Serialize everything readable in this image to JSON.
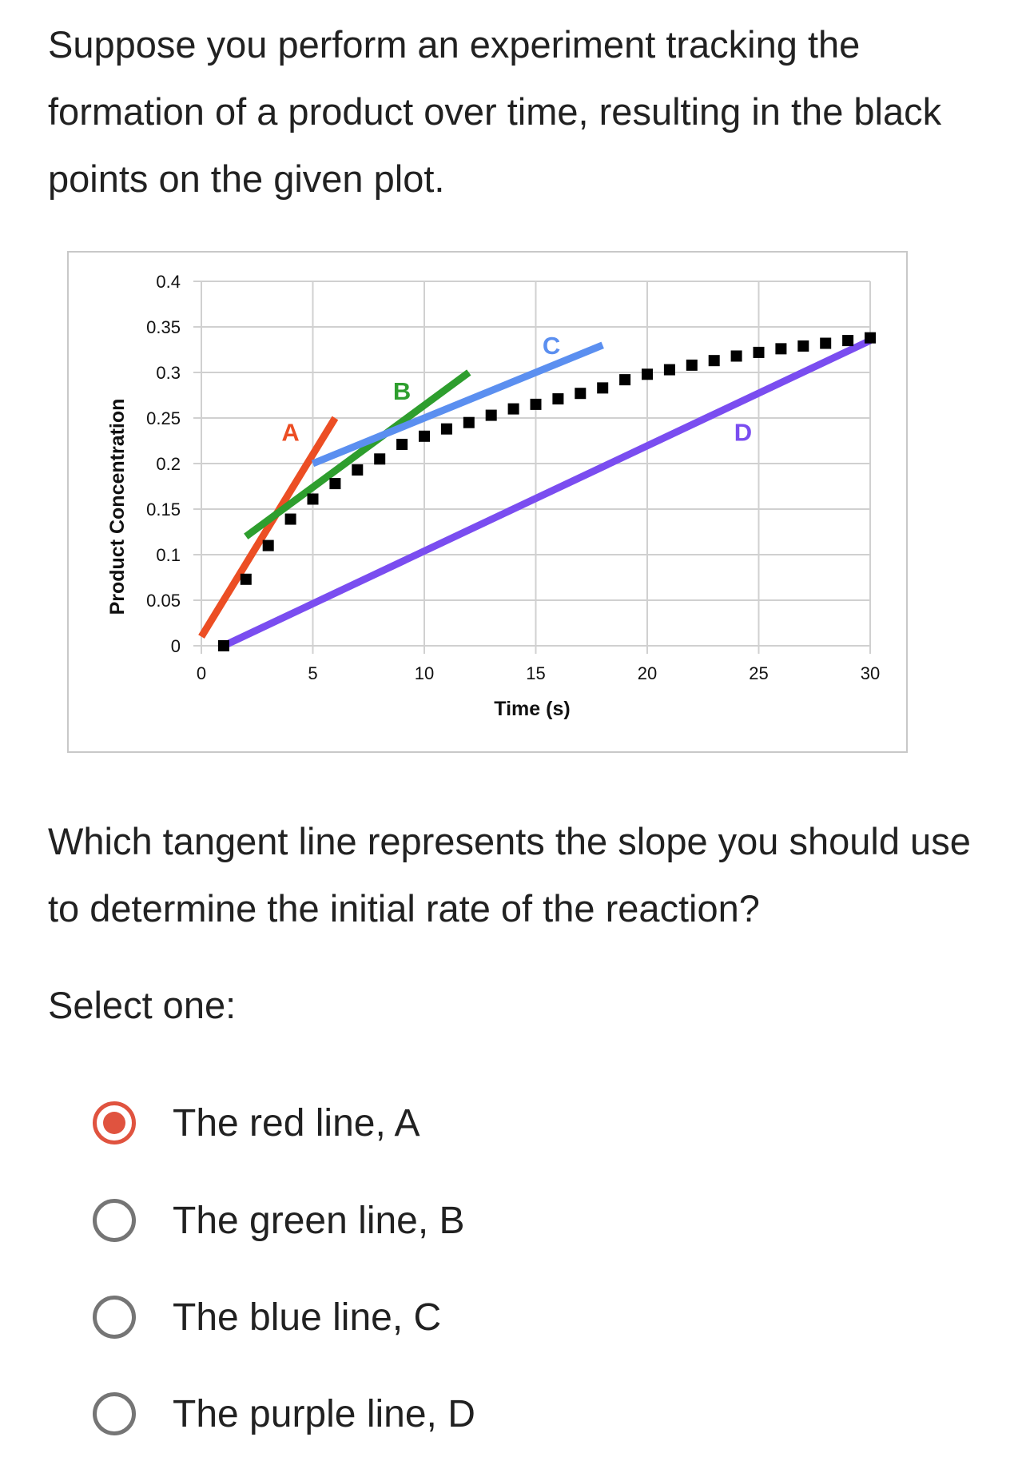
{
  "question_intro": "Suppose you perform an experiment tracking the formation of a product over time, resulting in the black points on the given plot.",
  "question": "Which tangent line represents the slope you should use to determine the initial rate of the reaction?",
  "select_label": "Select one:",
  "options": [
    {
      "label": "The red line, A",
      "selected": true
    },
    {
      "label": "The green line, B",
      "selected": false
    },
    {
      "label": "The blue line, C",
      "selected": false
    },
    {
      "label": "The purple line, D",
      "selected": false
    }
  ],
  "colors": {
    "accent": "#e0533f",
    "radio_border": "#757575",
    "red_line": "#ec4e24",
    "green_line": "#2e9e2e",
    "blue_line": "#5b8ff0",
    "purple_line": "#7a4df0",
    "points": "#000000",
    "grid": "#d0d0d0"
  },
  "chart_data": {
    "type": "scatter",
    "xlabel": "Time (s)",
    "ylabel": "Product Concentration",
    "xlim": [
      0,
      30
    ],
    "ylim": [
      0,
      0.4
    ],
    "xticks": [
      0,
      5,
      10,
      15,
      20,
      25,
      30
    ],
    "yticks": [
      0,
      0.05,
      0.1,
      0.15,
      0.2,
      0.25,
      0.3,
      0.35,
      0.4
    ],
    "ytick_labels": [
      "0",
      "0.05",
      "0.1",
      "0.15",
      "0.2",
      "0.25",
      "0.3",
      "0.35",
      "0.4"
    ],
    "grid": true,
    "points": {
      "x": [
        1,
        2,
        3,
        4,
        5,
        6,
        7,
        8,
        9,
        10,
        11,
        12,
        13,
        14,
        15,
        16,
        17,
        18,
        19,
        20,
        21,
        22,
        23,
        24,
        25,
        26,
        27,
        28,
        29,
        30
      ],
      "y": [
        0.0,
        0.073,
        0.11,
        0.139,
        0.161,
        0.178,
        0.193,
        0.205,
        0.221,
        0.23,
        0.238,
        0.245,
        0.253,
        0.26,
        0.265,
        0.271,
        0.277,
        0.283,
        0.292,
        0.298,
        0.303,
        0.308,
        0.313,
        0.318,
        0.322,
        0.326,
        0.329,
        0.332,
        0.335,
        0.338
      ]
    },
    "lines": [
      {
        "label": "A",
        "x": [
          0,
          6
        ],
        "y": [
          0.01,
          0.25
        ],
        "label_at": [
          4,
          0.225
        ]
      },
      {
        "label": "B",
        "x": [
          2,
          12
        ],
        "y": [
          0.12,
          0.3
        ],
        "label_at": [
          9,
          0.27
        ]
      },
      {
        "label": "C",
        "x": [
          5,
          18
        ],
        "y": [
          0.2,
          0.33
        ],
        "label_at": [
          15.7,
          0.32
        ]
      },
      {
        "label": "D",
        "x": [
          1,
          30
        ],
        "y": [
          0.0,
          0.335
        ],
        "label_at": [
          24.3,
          0.225
        ]
      }
    ]
  }
}
